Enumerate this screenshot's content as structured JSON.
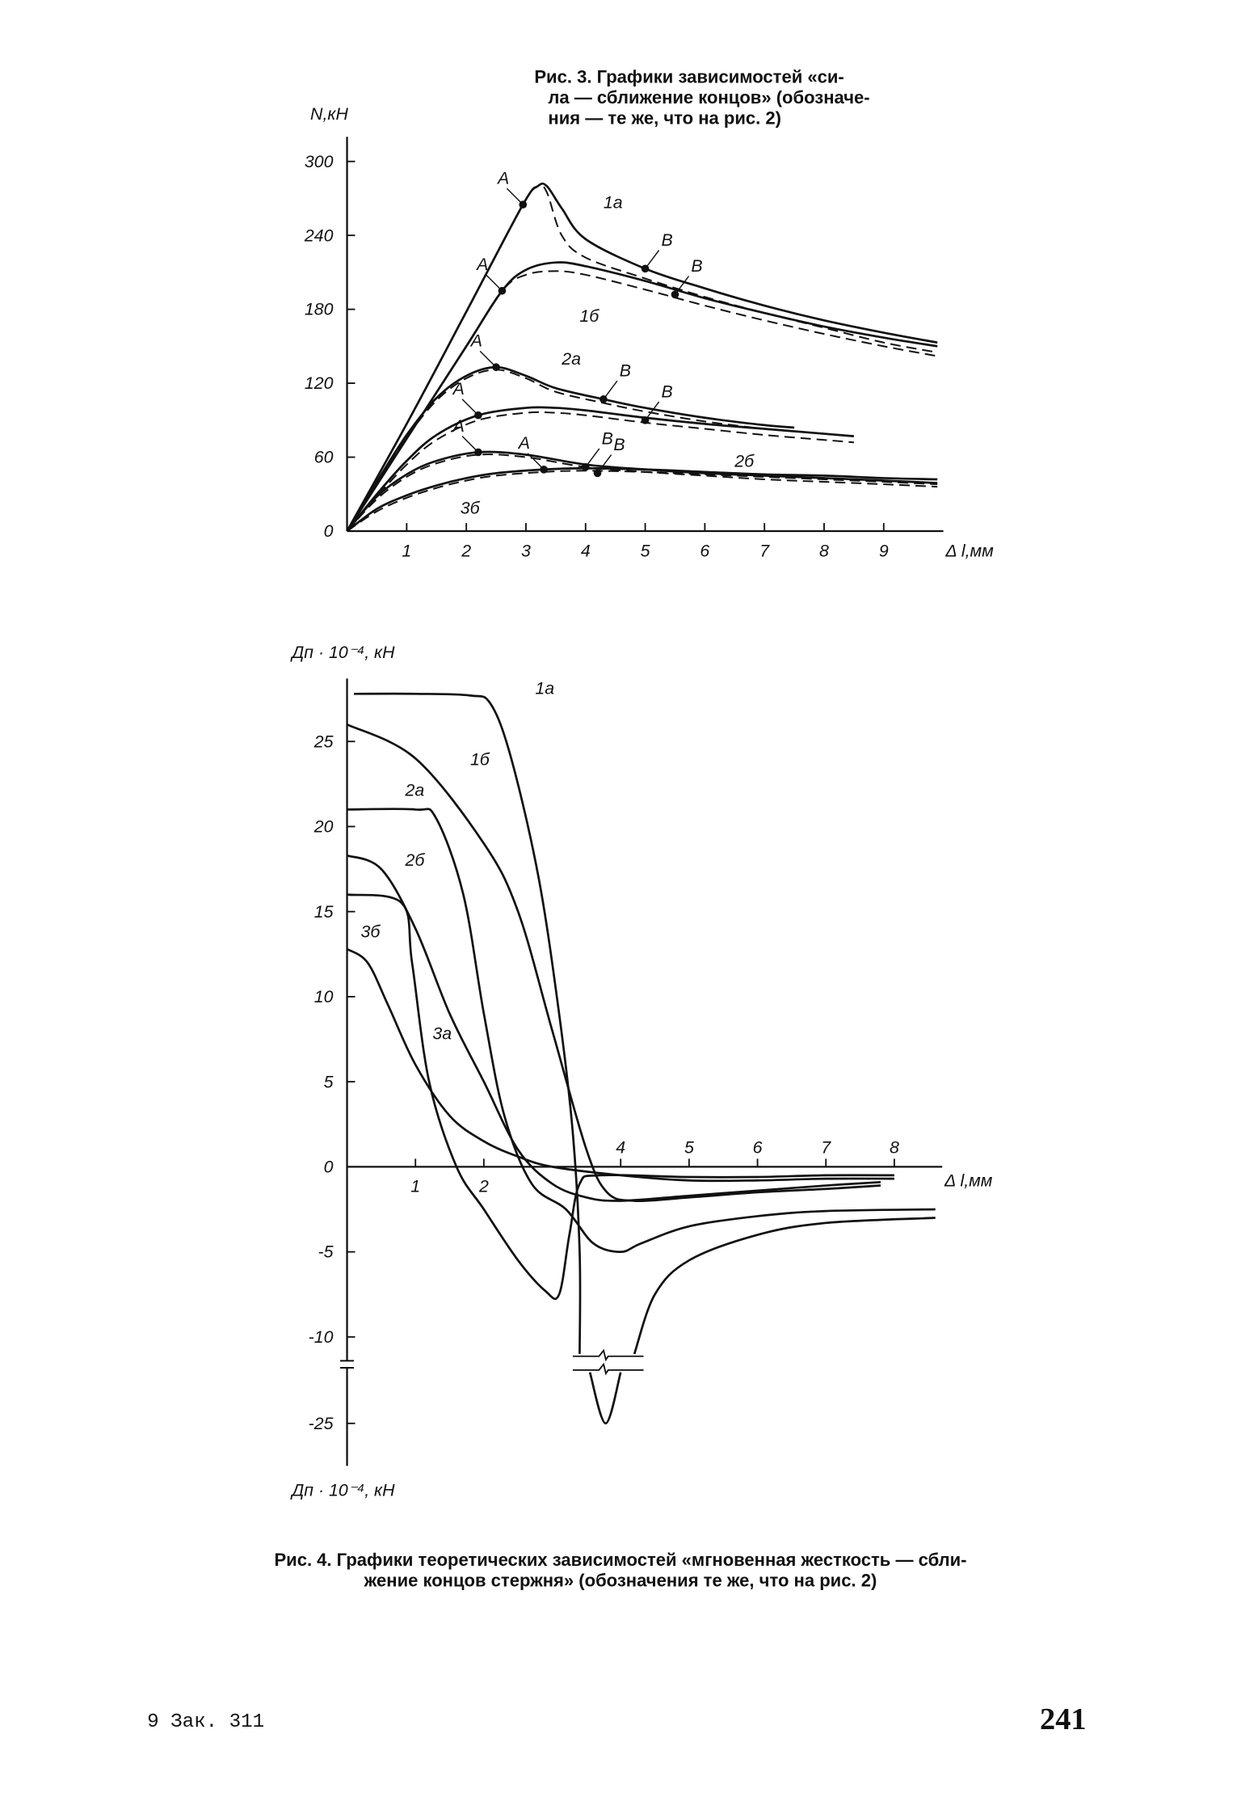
{
  "chart_data": [
    {
      "type": "line",
      "caption": [
        "Рис. 3. Графики зависимостей «си-",
        "ла — сближение концов» (обозначе-",
        "ния — те же, что на рис. 2)"
      ],
      "x_label": "Δ l,мм",
      "y_label": "N,кН",
      "xlim": [
        0,
        10
      ],
      "ylim": [
        0,
        320
      ],
      "xticks": [
        1,
        2,
        3,
        4,
        5,
        6,
        7,
        8,
        9
      ],
      "yticks": [
        0,
        60,
        120,
        180,
        240,
        300
      ],
      "series": [
        {
          "color": "#111",
          "dash": false,
          "x": [
            0,
            1,
            2,
            2.95,
            3.2,
            3.35,
            3.6,
            4,
            5,
            6,
            7,
            8,
            9,
            9.9
          ],
          "values": [
            0,
            87,
            178,
            265,
            280,
            280,
            262,
            237,
            213,
            197,
            183,
            171,
            161,
            153
          ]
        },
        {
          "color": "#111",
          "dash": true,
          "x": [
            0,
            1,
            2,
            2.95,
            3.2,
            3.35,
            3.6,
            4,
            5,
            6,
            7,
            8,
            9,
            9.9
          ],
          "values": [
            0,
            87,
            178,
            265,
            280,
            275,
            240,
            222,
            205,
            190,
            177,
            165,
            153,
            145
          ]
        },
        {
          "color": "#111",
          "dash": false,
          "x": [
            0,
            1,
            2,
            2.6,
            3,
            3.5,
            4,
            5,
            6,
            7,
            8,
            9,
            9.9
          ],
          "values": [
            0,
            75,
            150,
            195,
            212,
            218,
            215,
            203,
            189,
            177,
            166,
            157,
            150
          ]
        },
        {
          "color": "#111",
          "dash": true,
          "x": [
            0,
            1,
            2,
            2.6,
            3,
            3.5,
            4,
            5,
            6,
            7,
            8,
            9,
            9.9
          ],
          "values": [
            0,
            75,
            150,
            195,
            208,
            211,
            208,
            196,
            183,
            171,
            160,
            150,
            142
          ]
        },
        {
          "color": "#111",
          "dash": false,
          "x": [
            0,
            0.5,
            1,
            1.5,
            2,
            2.5,
            3,
            3.5,
            4.3,
            5,
            6,
            7,
            7.5
          ],
          "values": [
            0,
            40,
            78,
            108,
            126,
            133,
            126,
            116,
            107,
            100,
            92,
            86,
            84
          ]
        },
        {
          "color": "#111",
          "dash": true,
          "x": [
            0,
            0.5,
            1,
            1.5,
            2,
            2.5,
            3,
            3.5,
            4.3,
            5,
            6,
            7,
            7.5
          ],
          "values": [
            0,
            38,
            76,
            106,
            124,
            131,
            124,
            113,
            104,
            97,
            89,
            83,
            81
          ]
        },
        {
          "color": "#111",
          "dash": false,
          "x": [
            0,
            0.5,
            1,
            1.5,
            2.2,
            3,
            3.5,
            4,
            5,
            6,
            7,
            8,
            8.5
          ],
          "values": [
            0,
            30,
            57,
            78,
            94,
            100,
            100,
            98,
            92,
            87,
            83,
            79,
            77
          ]
        },
        {
          "color": "#111",
          "dash": true,
          "x": [
            0,
            0.5,
            1,
            1.5,
            2.2,
            3,
            3.5,
            4,
            5,
            6,
            7,
            8,
            8.5
          ],
          "values": [
            0,
            28,
            54,
            74,
            90,
            96,
            96,
            94,
            88,
            83,
            78,
            74,
            72
          ]
        },
        {
          "color": "#111",
          "dash": false,
          "x": [
            0,
            0.5,
            1,
            1.5,
            2.2,
            3,
            4,
            5,
            6,
            7,
            8,
            9,
            9.9
          ],
          "values": [
            0,
            28,
            46,
            57,
            64,
            62,
            54,
            50,
            47,
            45,
            43,
            41,
            39
          ]
        },
        {
          "color": "#111",
          "dash": true,
          "x": [
            0,
            0.5,
            1,
            1.5,
            2.2,
            3,
            4,
            5,
            6,
            7,
            8,
            9,
            9.9
          ],
          "values": [
            0,
            26,
            44,
            55,
            62,
            60,
            52,
            48,
            45,
            42,
            40,
            38,
            36
          ]
        },
        {
          "color": "#111",
          "dash": false,
          "x": [
            0,
            0.5,
            1,
            1.5,
            2,
            2.5,
            3.3,
            4,
            5,
            6,
            7,
            8,
            9,
            9.9
          ],
          "values": [
            0,
            18,
            29,
            37,
            43,
            47,
            50,
            51,
            50,
            48,
            46,
            45,
            43,
            42
          ]
        },
        {
          "color": "#111",
          "dash": true,
          "x": [
            0,
            0.5,
            1,
            1.5,
            2,
            2.5,
            3.3,
            4,
            5,
            6,
            7,
            8,
            9,
            9.9
          ],
          "values": [
            0,
            16,
            27,
            35,
            41,
            45,
            48,
            49,
            48,
            46,
            44,
            42,
            40,
            38
          ]
        }
      ],
      "points": [
        {
          "text": "A",
          "x": 2.95,
          "y": 265
        },
        {
          "text": "B",
          "x": 5,
          "y": 213
        },
        {
          "text": "A",
          "x": 2.6,
          "y": 195
        },
        {
          "text": "B",
          "x": 5.5,
          "y": 192
        },
        {
          "text": "A",
          "x": 2.5,
          "y": 133
        },
        {
          "text": "B",
          "x": 4.3,
          "y": 107
        },
        {
          "text": "A",
          "x": 2.2,
          "y": 94
        },
        {
          "text": "B",
          "x": 5,
          "y": 90
        },
        {
          "text": "A",
          "x": 2.2,
          "y": 64
        },
        {
          "text": "B",
          "x": 4,
          "y": 52
        },
        {
          "text": "A",
          "x": 3.3,
          "y": 50
        },
        {
          "text": "B",
          "x": 4.2,
          "y": 47
        }
      ],
      "curve_labels": [
        {
          "text": "1а",
          "x": 4.3,
          "y": 262
        },
        {
          "text": "1б",
          "x": 3.9,
          "y": 170
        },
        {
          "text": "2а",
          "x": 3.6,
          "y": 135
        },
        {
          "text": "2б",
          "x": 6.5,
          "y": 52
        },
        {
          "text": "3б",
          "x": 1.9,
          "y": 14
        }
      ]
    },
    {
      "type": "line",
      "caption": [
        "Рис. 4. Графики теоретических зависимостей «мгновенная жесткость — сбли-",
        "жение концов стержня» (обозначения те же, что на рис. 2)"
      ],
      "x_label": "Δ l,мм",
      "y_label": "Дп · 10⁻⁴, кН",
      "y_label_bottom": "Дп · 10⁻⁴, кН",
      "xlim": [
        0,
        8.7
      ],
      "ylim": [
        -27.5,
        28.7
      ],
      "ybreak": [
        -11,
        -22
      ],
      "xticks": [
        1,
        2,
        4,
        5,
        6,
        7,
        8
      ],
      "yticks": [
        25,
        20,
        15,
        10,
        5,
        0,
        -5,
        -10,
        -25
      ],
      "series": [
        {
          "color": "#111",
          "dash": false,
          "x": [
            0.1,
            1,
            1.8,
            2.1,
            2.4,
            2.8,
            3.1,
            3.3,
            3.4,
            3.4,
            3.5,
            3.55,
            3.78,
            4.0,
            4.1,
            4.2,
            4.5,
            5,
            6,
            7,
            8.6
          ],
          "values": [
            27.8,
            27.8,
            27.7,
            27.2,
            24,
            17,
            9,
            2,
            -5,
            -11,
            null,
            -22,
            -25,
            -22,
            null,
            -11,
            -7.5,
            -5.5,
            -4,
            -3.3,
            -3
          ]
        },
        {
          "color": "#111",
          "dash": false,
          "x": [
            0,
            1,
            2,
            2.5,
            3,
            3.5,
            3.8,
            4.2,
            5,
            6,
            7,
            7.8
          ],
          "values": [
            26,
            24,
            19,
            15,
            8,
            1,
            -1.5,
            -2,
            -1.8,
            -1.5,
            -1.3,
            -1.1
          ]
        },
        {
          "color": "#111",
          "dash": false,
          "x": [
            0,
            1,
            1.3,
            1.7,
            2,
            2.3,
            2.7,
            3.2,
            3.6,
            4,
            4.3,
            5,
            6,
            7,
            8.6
          ],
          "values": [
            21,
            21,
            20.5,
            16,
            9,
            3,
            -1,
            -2.5,
            -4.5,
            -5,
            -4.5,
            -3.5,
            -2.9,
            -2.6,
            -2.5
          ]
        },
        {
          "color": "#111",
          "dash": false,
          "x": [
            0,
            0.5,
            1,
            1.5,
            2,
            2.5,
            3,
            3.5,
            4,
            5,
            6,
            7,
            7.8
          ],
          "values": [
            18.3,
            17.5,
            14,
            9,
            5,
            1,
            -1,
            -1.8,
            -2,
            -1.7,
            -1.4,
            -1.1,
            -0.9
          ]
        },
        {
          "color": "#111",
          "dash": false,
          "x": [
            0,
            0.8,
            0.95,
            1.2,
            1.6,
            2,
            2.5,
            2.9,
            3.1,
            3.25,
            3.4,
            3.7,
            5,
            6,
            7,
            8
          ],
          "values": [
            16,
            15.5,
            12,
            5,
            0,
            -2.5,
            -5.5,
            -7.3,
            -7.5,
            -4,
            -1,
            -0.5,
            -0.6,
            -0.6,
            -0.5,
            -0.5
          ]
        },
        {
          "color": "#111",
          "dash": false,
          "x": [
            0,
            0.3,
            0.6,
            1,
            1.5,
            2,
            2.5,
            3,
            4,
            5,
            6,
            7,
            8
          ],
          "values": [
            12.8,
            12,
            9.5,
            6,
            3,
            1.5,
            0.6,
            0,
            -0.5,
            -0.8,
            -0.8,
            -0.7,
            -0.7
          ]
        }
      ],
      "curve_labels": [
        {
          "text": "1а",
          "x": 2.75,
          "y": 27.8
        },
        {
          "text": "1б",
          "x": 1.8,
          "y": 23.6
        },
        {
          "text": "2а",
          "x": 0.85,
          "y": 21.8
        },
        {
          "text": "2б",
          "x": 0.85,
          "y": 17.7
        },
        {
          "text": "3б",
          "x": 0.2,
          "y": 13.5
        },
        {
          "text": "3а",
          "x": 1.25,
          "y": 7.5
        }
      ]
    }
  ],
  "footer": {
    "left": "9 Зак. 311",
    "page": "241"
  }
}
